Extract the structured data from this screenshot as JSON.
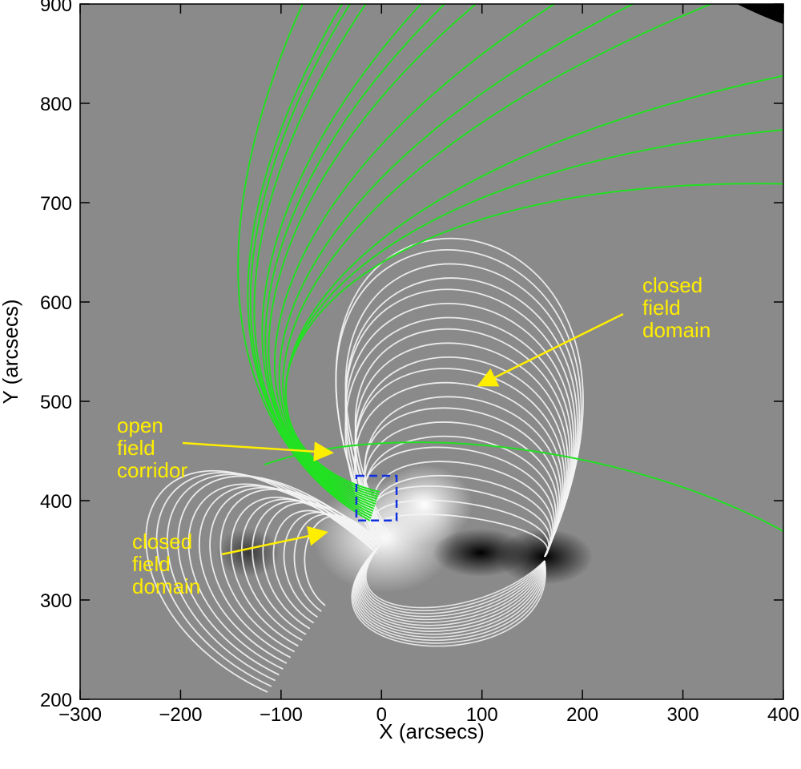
{
  "chart_data": {
    "type": "image",
    "x_label": "X (arcsecs)",
    "y_label": "Y (arcsecs)",
    "xlim": [
      -300,
      400
    ],
    "ylim": [
      200,
      900
    ],
    "xticks": [
      {
        "value": -300,
        "label": "−300"
      },
      {
        "value": -200,
        "label": "−200"
      },
      {
        "value": -100,
        "label": "−100"
      },
      0,
      100,
      200,
      300,
      400
    ],
    "yticks": [
      200,
      300,
      400,
      500,
      600,
      700,
      800,
      900
    ],
    "box": {
      "color": "#1030e0",
      "xlim": [
        -25,
        15
      ],
      "ylim": [
        380,
        425
      ]
    },
    "annotations": [
      {
        "lines": [
          "closed",
          "field",
          "domain"
        ]
      },
      {
        "lines": [
          "open",
          "field",
          "corridor"
        ]
      },
      {
        "lines": [
          "closed",
          "field",
          "domain"
        ]
      }
    ]
  }
}
